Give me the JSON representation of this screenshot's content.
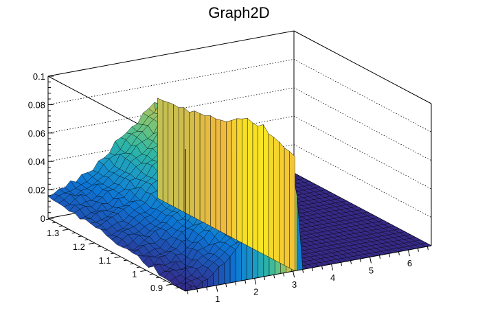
{
  "chart_data": {
    "type": "surface",
    "title": "Graph2D",
    "xlabel": "",
    "ylabel": "",
    "zlabel": "",
    "xlim": [
      0.2,
      6.6
    ],
    "ylim": [
      0.85,
      1.38
    ],
    "zlim": [
      0,
      0.1
    ],
    "x_ticks": [
      "1",
      "2",
      "3",
      "4",
      "5",
      "6"
    ],
    "y_ticks": [
      "0.9",
      "1",
      "1.1",
      "1.2",
      "1.3"
    ],
    "z_ticks": [
      "0",
      "0.02",
      "0.04",
      "0.06",
      "0.08",
      "0.1"
    ],
    "grid": true,
    "colormap": [
      "#352a87",
      "#1f4fb0",
      "#0c74d4",
      "#1a98c9",
      "#2db5a6",
      "#6cc47e",
      "#b4c25b",
      "#f0b93d",
      "#f9e721"
    ],
    "surface_profile": {
      "x": [
        0.2,
        0.8,
        1.4,
        2.0,
        2.6,
        2.9,
        3.05,
        3.2,
        3.5,
        4.5,
        5.5,
        6.6
      ],
      "z_at_y_max": [
        0.016,
        0.022,
        0.03,
        0.045,
        0.058,
        0.066,
        0.071,
        0.0,
        0.0,
        0.0,
        0.0,
        0.0
      ],
      "z_at_y_min": [
        0.0,
        0.006,
        0.02,
        0.034,
        0.052,
        0.066,
        0.08,
        0.0,
        0.0,
        0.0,
        0.0,
        0.0
      ],
      "ridge_peak": {
        "x": 3.05,
        "y": 1.0,
        "z": 0.082
      }
    }
  }
}
